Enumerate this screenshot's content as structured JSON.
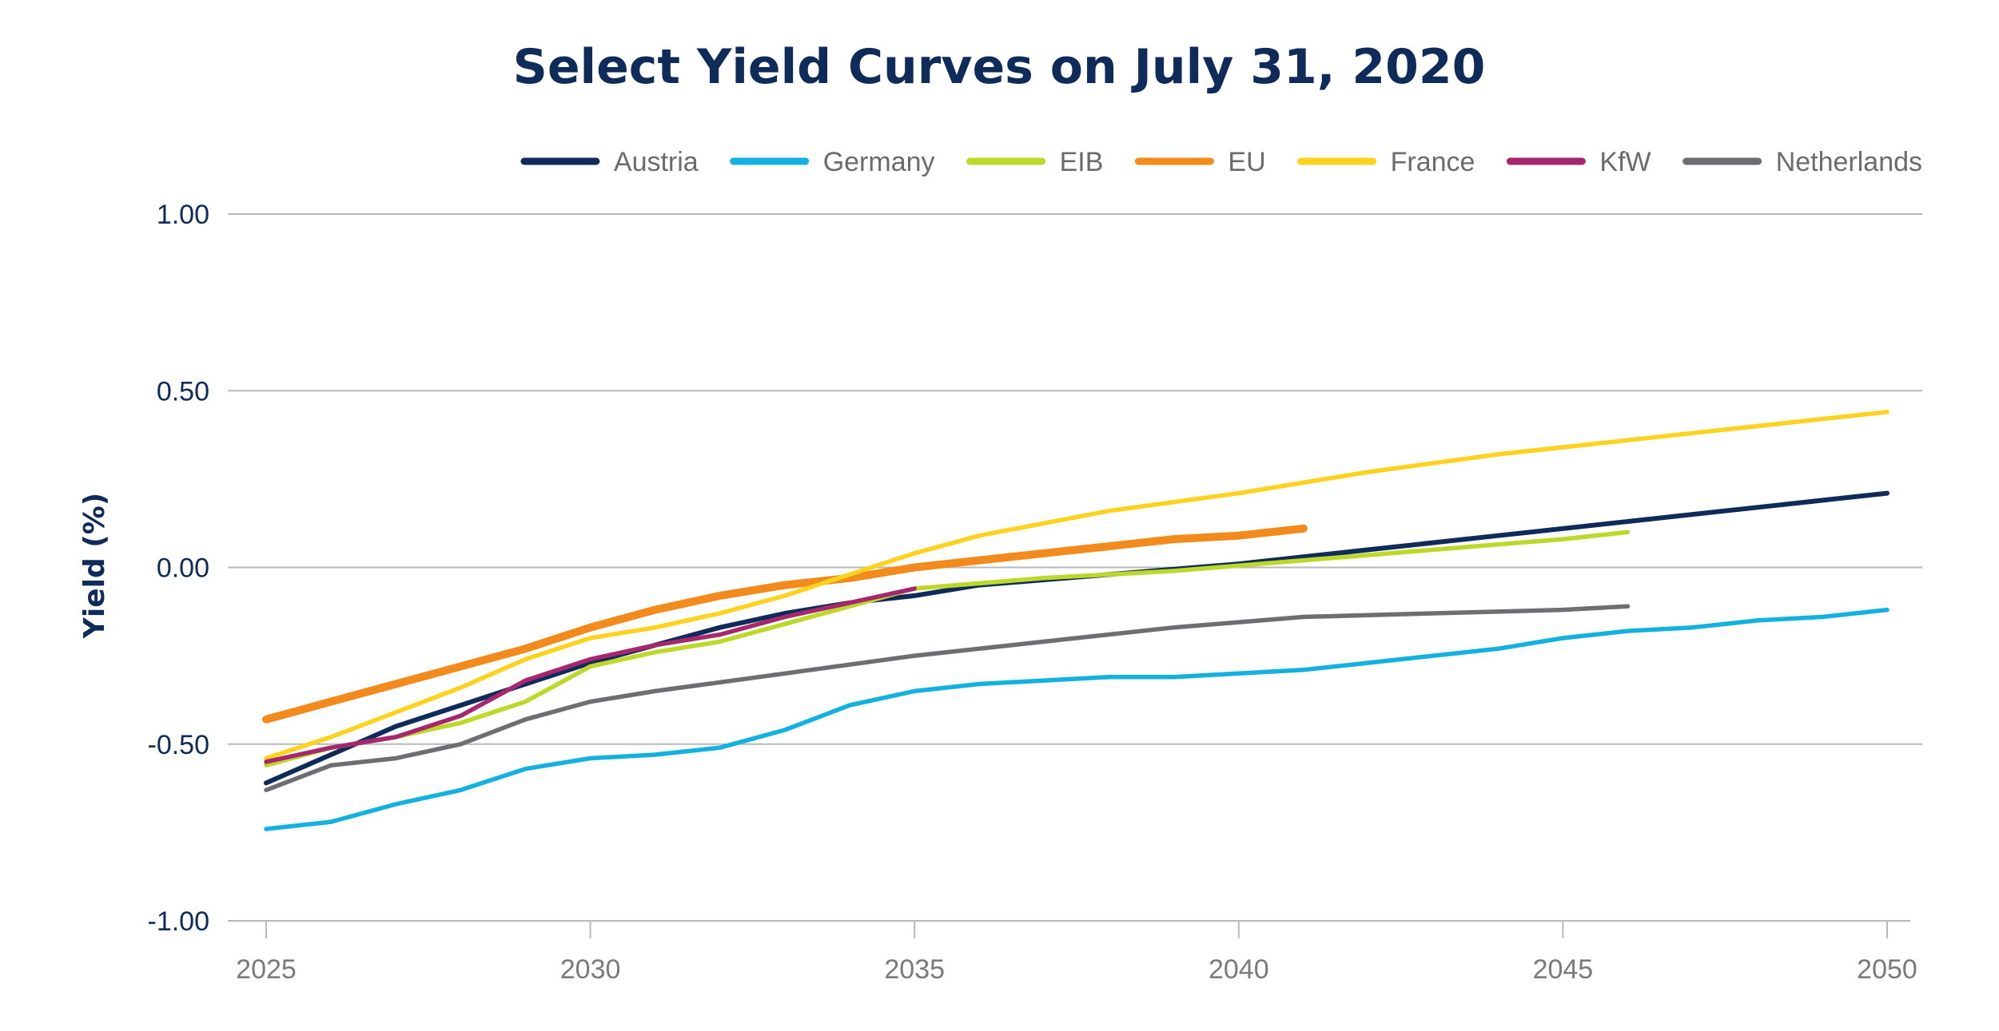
{
  "chart_data": {
    "type": "line",
    "title": "Select Yield Curves on July 31, 2020",
    "xlabel": "",
    "ylabel": "Yield (%)",
    "xlim": [
      2025,
      2050
    ],
    "ylim": [
      -1.0,
      1.0
    ],
    "x_ticks": [
      2025,
      2030,
      2035,
      2040,
      2045,
      2050
    ],
    "x_tick_labels": [
      "2025",
      "2030",
      "2035",
      "2040",
      "2045",
      "2050"
    ],
    "y_ticks": [
      1.0,
      0.5,
      0.0,
      -0.5,
      -1.0
    ],
    "y_tick_labels": [
      "1.00",
      "0.50",
      "0.00",
      "-0.50",
      "-1.00"
    ],
    "grid": true,
    "legend_position": "top",
    "series": [
      {
        "name": "Austria",
        "color": "#0e2b5a",
        "x": [
          2025,
          2026,
          2027,
          2028,
          2029,
          2030,
          2031,
          2032,
          2033,
          2034,
          2035,
          2036,
          2038,
          2040,
          2042,
          2044,
          2046,
          2048,
          2050
        ],
        "y": [
          -0.61,
          -0.53,
          -0.45,
          -0.39,
          -0.33,
          -0.27,
          -0.22,
          -0.17,
          -0.13,
          -0.1,
          -0.08,
          -0.05,
          -0.02,
          0.01,
          0.05,
          0.09,
          0.13,
          0.17,
          0.21
        ]
      },
      {
        "name": "Germany",
        "color": "#13b1df",
        "x": [
          2025,
          2026,
          2027,
          2028,
          2029,
          2030,
          2031,
          2032,
          2033,
          2034,
          2035,
          2036,
          2037,
          2038,
          2039,
          2040,
          2041,
          2042,
          2043,
          2044,
          2045,
          2046,
          2047,
          2048,
          2049,
          2050
        ],
        "y": [
          -0.74,
          -0.72,
          -0.67,
          -0.63,
          -0.57,
          -0.54,
          -0.53,
          -0.51,
          -0.46,
          -0.39,
          -0.35,
          -0.33,
          -0.32,
          -0.31,
          -0.31,
          -0.3,
          -0.29,
          -0.27,
          -0.25,
          -0.23,
          -0.2,
          -0.18,
          -0.17,
          -0.15,
          -0.14,
          -0.12
        ]
      },
      {
        "name": "EIB",
        "color": "#bcd92a",
        "x": [
          2025,
          2026,
          2027,
          2028,
          2029,
          2030,
          2031,
          2032,
          2033,
          2034,
          2035,
          2037,
          2039,
          2041,
          2043,
          2045,
          2046
        ],
        "y": [
          -0.56,
          -0.51,
          -0.48,
          -0.44,
          -0.38,
          -0.28,
          -0.24,
          -0.21,
          -0.16,
          -0.11,
          -0.06,
          -0.03,
          -0.01,
          0.02,
          0.05,
          0.08,
          0.1
        ]
      },
      {
        "name": "EU",
        "color": "#f28a1c",
        "x": [
          2025,
          2026,
          2027,
          2028,
          2029,
          2030,
          2031,
          2032,
          2033,
          2034,
          2035,
          2036,
          2037,
          2038,
          2039,
          2040,
          2041
        ],
        "y": [
          -0.43,
          -0.38,
          -0.33,
          -0.28,
          -0.23,
          -0.17,
          -0.12,
          -0.08,
          -0.05,
          -0.03,
          0.0,
          0.02,
          0.04,
          0.06,
          0.08,
          0.09,
          0.11
        ]
      },
      {
        "name": "France",
        "color": "#ffd21e",
        "x": [
          2025,
          2026,
          2027,
          2028,
          2029,
          2030,
          2031,
          2032,
          2033,
          2034,
          2035,
          2036,
          2038,
          2040,
          2042,
          2044,
          2046,
          2048,
          2050
        ],
        "y": [
          -0.54,
          -0.48,
          -0.41,
          -0.34,
          -0.26,
          -0.2,
          -0.17,
          -0.13,
          -0.08,
          -0.02,
          0.04,
          0.09,
          0.16,
          0.21,
          0.27,
          0.32,
          0.36,
          0.4,
          0.44
        ]
      },
      {
        "name": "KfW",
        "color": "#a6276d",
        "x": [
          2025,
          2026,
          2027,
          2028,
          2029,
          2030,
          2031,
          2032,
          2033,
          2034,
          2035
        ],
        "y": [
          -0.55,
          -0.51,
          -0.48,
          -0.42,
          -0.32,
          -0.26,
          -0.22,
          -0.19,
          -0.14,
          -0.1,
          -0.06
        ]
      },
      {
        "name": "Netherlands",
        "color": "#6d6e71",
        "x": [
          2025,
          2026,
          2027,
          2028,
          2029,
          2030,
          2031,
          2033,
          2035,
          2037,
          2039,
          2041,
          2043,
          2045,
          2046
        ],
        "y": [
          -0.63,
          -0.56,
          -0.54,
          -0.5,
          -0.43,
          -0.38,
          -0.35,
          -0.3,
          -0.25,
          -0.21,
          -0.17,
          -0.14,
          -0.13,
          -0.12,
          -0.11
        ]
      }
    ]
  }
}
